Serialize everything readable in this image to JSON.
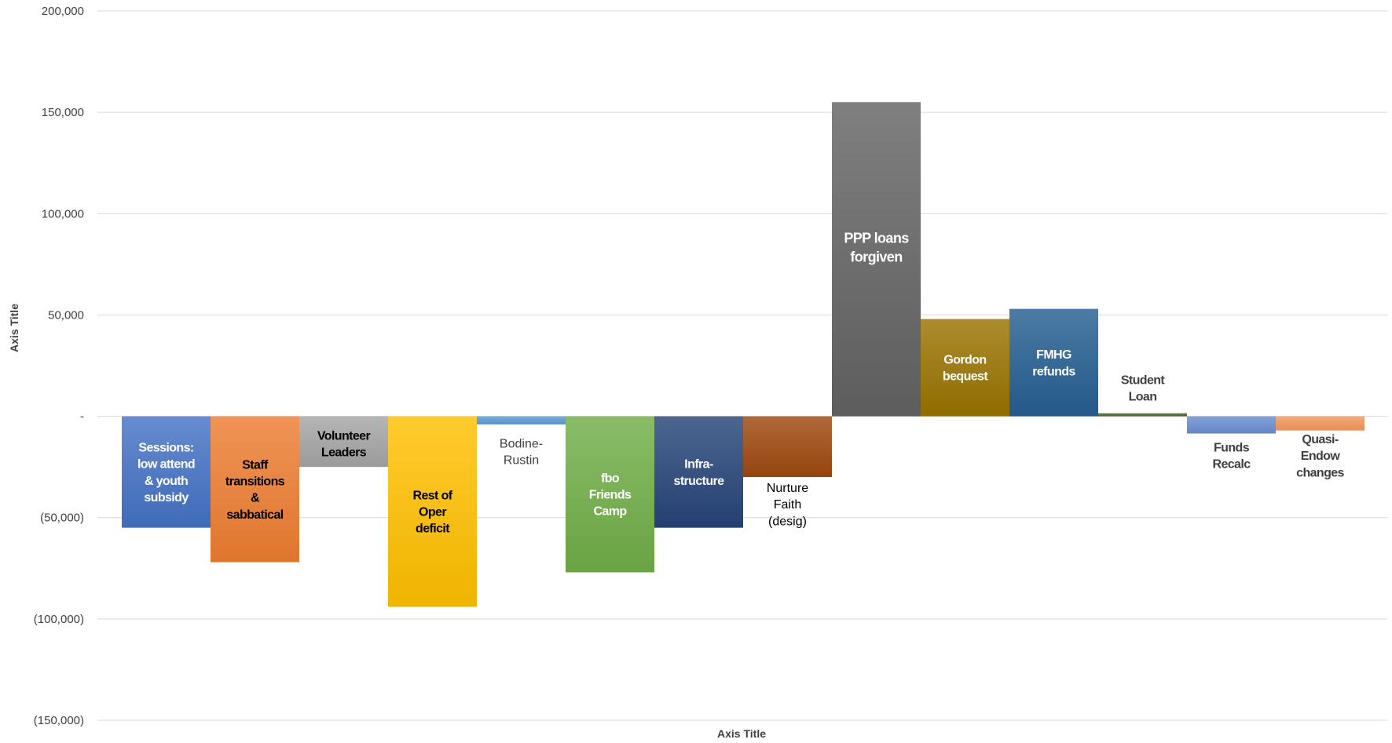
{
  "chart_data": {
    "type": "bar",
    "xlabel": "Axis Title",
    "ylabel": "Axis Title",
    "ylim": [
      -150000,
      200000
    ],
    "y_ticks": [
      "200,000",
      "150,000",
      "100,000",
      "50,000",
      "-",
      "(50,000)",
      "(100,000)",
      "(150,000)"
    ],
    "y_tick_values": [
      200000,
      150000,
      100000,
      50000,
      0,
      -50000,
      -100000,
      -150000
    ],
    "grid": true,
    "legend": "none",
    "categories": [
      "Sessions: low attend & youth subsidy",
      "Staff transitions & sabbatical",
      "Volunteer Leaders",
      "Rest of Oper deficit",
      "Bodine-Rustin",
      "fbo Friends Camp",
      "Infra-structure",
      "Nurture Faith (desig)",
      "PPP loans forgiven",
      "Gordon bequest",
      "FMHG refunds",
      "Student Loan",
      "Funds Recalc",
      "Quasi-Endow changes"
    ],
    "values": [
      -55000,
      -72000,
      -25000,
      -94000,
      -4000,
      -77000,
      -55000,
      -30000,
      155000,
      48000,
      53000,
      1500,
      -8500,
      -7000
    ],
    "bars": [
      {
        "lines": [
          "Sessions:",
          "low attend",
          "& youth",
          "subsidy"
        ],
        "color": "#4472C4",
        "label_color": "#ffffff"
      },
      {
        "lines": [
          "Staff",
          "transitions",
          "&",
          "sabbatical"
        ],
        "color": "#ED7D31",
        "label_color": "#000000"
      },
      {
        "lines": [
          "Volunteer",
          "Leaders"
        ],
        "color": "#A5A5A5",
        "label_color": "#000000"
      },
      {
        "lines": [
          "Rest of",
          "Oper",
          "deficit"
        ],
        "color": "#FFC000",
        "label_color": "#000000"
      },
      {
        "lines": [
          "Bodine-",
          "Rustin"
        ],
        "color": "#5B9BD5",
        "label_color": "#404040"
      },
      {
        "lines": [
          "fbo",
          "Friends",
          "Camp"
        ],
        "color": "#70AD47",
        "label_color": "#ffffff"
      },
      {
        "lines": [
          "Infra-",
          "structure"
        ],
        "color": "#264478",
        "label_color": "#ffffff"
      },
      {
        "lines": [
          "Nurture",
          "Faith",
          "(desig)"
        ],
        "color": "#9E480E",
        "label_color": "#000000"
      },
      {
        "lines": [
          "PPP loans",
          "forgiven"
        ],
        "color": "#636363",
        "label_color": "#ffffff"
      },
      {
        "lines": [
          "Gordon",
          "bequest"
        ],
        "color": "#997300",
        "label_color": "#ffffff"
      },
      {
        "lines": [
          "FMHG",
          "refunds"
        ],
        "color": "#255E91",
        "label_color": "#ffffff"
      },
      {
        "lines": [
          "Student",
          "Loan"
        ],
        "color": "#43682B",
        "label_color": "#404040"
      },
      {
        "lines": [
          "Funds",
          "Recalc"
        ],
        "color": "#698ED0",
        "label_color": "#404040"
      },
      {
        "lines": [
          "Quasi-",
          "Endow",
          "changes"
        ],
        "color": "#F1975A",
        "label_color": "#404040"
      }
    ]
  }
}
